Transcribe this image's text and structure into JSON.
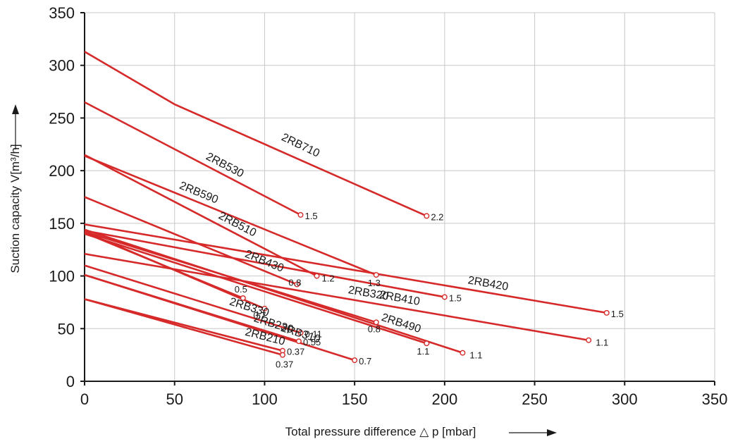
{
  "chart_data": {
    "type": "line",
    "title": "",
    "xlabel": "Total pressure difference △ p [mbar]",
    "ylabel": "Suction capacity V[m³/h]",
    "xlim": [
      0,
      350
    ],
    "ylim": [
      0,
      350
    ],
    "x_ticks": [
      "0",
      "50",
      "100",
      "150",
      "200",
      "250",
      "300",
      "350"
    ],
    "y_ticks": [
      "0",
      "50",
      "100",
      "150",
      "200",
      "250",
      "300",
      "350"
    ],
    "grid": true,
    "line_color": "#d62a2a",
    "grid_color": "#c8c8c8",
    "series": [
      {
        "name": "2RB710",
        "x": [
          0,
          50,
          190
        ],
        "y": [
          313,
          263,
          157
        ],
        "end_label": "2.2"
      },
      {
        "name": "2RB530",
        "x": [
          0,
          120
        ],
        "y": [
          265,
          158
        ],
        "end_label": "1.5"
      },
      {
        "name": "2RB510",
        "x": [
          0,
          129
        ],
        "y": [
          215,
          100
        ],
        "end_label": "1.2"
      },
      {
        "name": "2RB590",
        "x": [
          0,
          162
        ],
        "y": [
          214,
          101
        ],
        "end_label": "1.3"
      },
      {
        "name": "2RB430",
        "x": [
          0,
          118
        ],
        "y": [
          175,
          92
        ],
        "end_label": "0.8"
      },
      {
        "name": "2RB420",
        "x": [
          0,
          290
        ],
        "y": [
          149,
          65
        ],
        "end_label": "1.5"
      },
      {
        "name": "2RB410",
        "x": [
          0,
          200
        ],
        "y": [
          143,
          80
        ],
        "end_label": "1.5"
      },
      {
        "name": "2RB320",
        "x": [
          0,
          280
        ],
        "y": [
          121,
          39
        ],
        "end_label": "1.1"
      },
      {
        "name": "2RB490",
        "x": [
          0,
          210
        ],
        "y": [
          144,
          27
        ],
        "end_label": "1.1"
      },
      {
        "name": "",
        "x": [
          0,
          162
        ],
        "y": [
          142,
          56
        ],
        "end_label": "0.8"
      },
      {
        "name": "",
        "x": [
          0,
          190
        ],
        "y": [
          140,
          36
        ],
        "end_label": "1.1"
      },
      {
        "name": "",
        "x": [
          0,
          88
        ],
        "y": [
          141,
          79
        ],
        "end_label": "0.5"
      },
      {
        "name": "",
        "x": [
          0,
          100
        ],
        "y": [
          142,
          69
        ],
        "end_label": "0.7"
      },
      {
        "name": "2RB330",
        "x": [
          0,
          120
        ],
        "y": [
          110,
          46
        ],
        "end_label": "0.11"
      },
      {
        "name": "2RB310",
        "x": [
          0,
          150
        ],
        "y": [
          101,
          20
        ],
        "end_label": "0.7"
      },
      {
        "name": "2RB230",
        "x": [
          0,
          119
        ],
        "y": [
          101,
          38
        ],
        "end_label": "0.55"
      },
      {
        "name": "2RB210",
        "x": [
          0,
          110
        ],
        "y": [
          78,
          29
        ],
        "end_label": "0.37"
      },
      {
        "name": "",
        "x": [
          0,
          110
        ],
        "y": [
          78,
          25
        ],
        "end_label": "0.37"
      }
    ]
  }
}
